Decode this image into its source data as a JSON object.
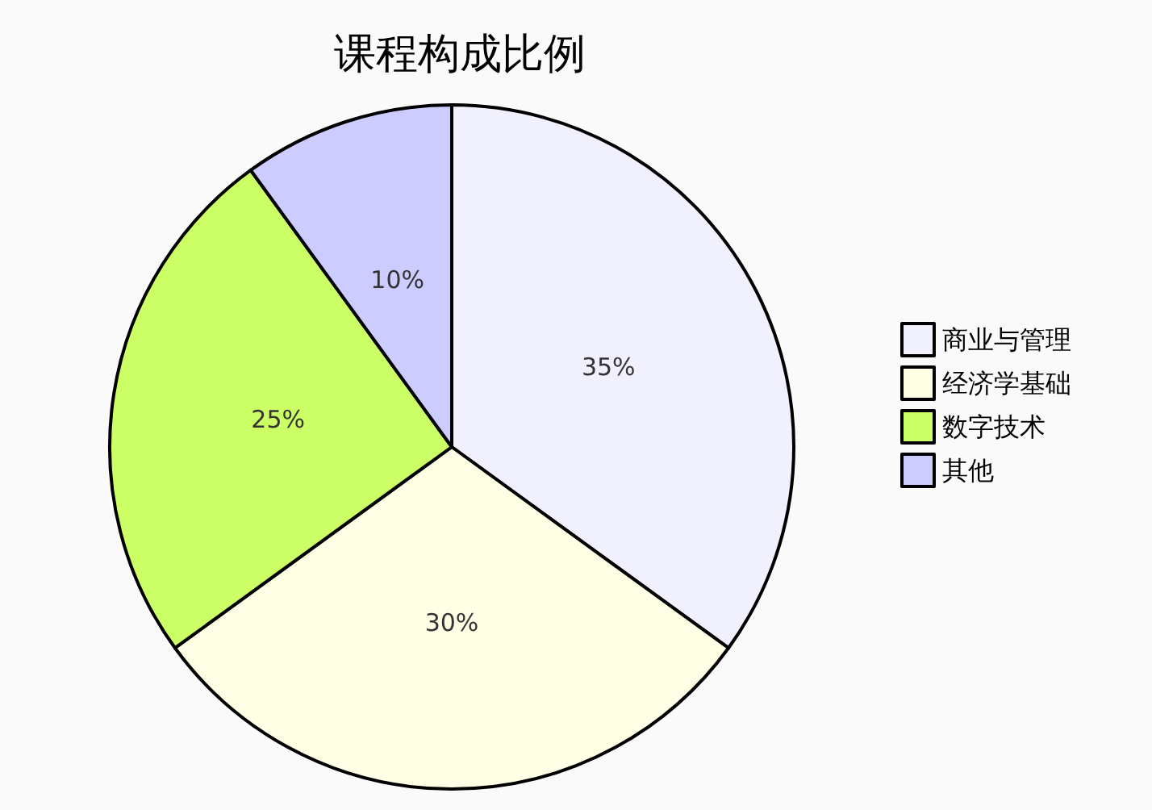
{
  "chart_data": {
    "type": "pie",
    "title": "课程构成比例",
    "categories": [
      "商业与管理",
      "经济学基础",
      "数字技术",
      "其他"
    ],
    "values": [
      35,
      30,
      25,
      10
    ],
    "colors": [
      "#f0f0ff",
      "#ffffe6",
      "#ccff66",
      "#ccccff"
    ],
    "value_labels": [
      "35%",
      "30%",
      "25%",
      "10%"
    ],
    "legend": "right"
  }
}
